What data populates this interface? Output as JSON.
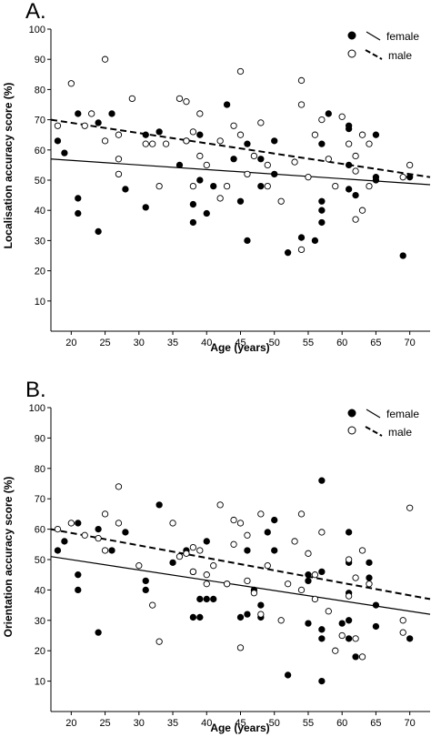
{
  "chart_data": [
    {
      "panel_label": "A.",
      "type": "scatter",
      "xlabel": "Age (years)",
      "ylabel": "Localisation accuracy score (%)",
      "xlim": [
        17,
        73
      ],
      "ylim": [
        0,
        100
      ],
      "x_ticks": [
        20,
        25,
        30,
        35,
        40,
        45,
        50,
        55,
        60,
        65,
        70
      ],
      "y_ticks": [
        10,
        20,
        30,
        40,
        50,
        60,
        70,
        80,
        90,
        100
      ],
      "legend_position": "top-right",
      "series": [
        {
          "name": "female",
          "marker": "filled",
          "line_style": "solid",
          "fit_line": [
            [
              17,
              57
            ],
            [
              73,
              48.5
            ]
          ],
          "points": [
            [
              18,
              63
            ],
            [
              19,
              59
            ],
            [
              21,
              72
            ],
            [
              21,
              44
            ],
            [
              21,
              39
            ],
            [
              24,
              69
            ],
            [
              24,
              33
            ],
            [
              26,
              72
            ],
            [
              28,
              47
            ],
            [
              31,
              65
            ],
            [
              31,
              41
            ],
            [
              33,
              66
            ],
            [
              36,
              55
            ],
            [
              37,
              63
            ],
            [
              38,
              36
            ],
            [
              38,
              42
            ],
            [
              39,
              65
            ],
            [
              39,
              50
            ],
            [
              40,
              39
            ],
            [
              41,
              48
            ],
            [
              43,
              75
            ],
            [
              44,
              57
            ],
            [
              45,
              43
            ],
            [
              46,
              62
            ],
            [
              46,
              30
            ],
            [
              48,
              48
            ],
            [
              48,
              57
            ],
            [
              50,
              63
            ],
            [
              50,
              52
            ],
            [
              52,
              26
            ],
            [
              54,
              31
            ],
            [
              56,
              30
            ],
            [
              57,
              62
            ],
            [
              57,
              43
            ],
            [
              57,
              40
            ],
            [
              57,
              36
            ],
            [
              58,
              72
            ],
            [
              61,
              68
            ],
            [
              61,
              67
            ],
            [
              61,
              55
            ],
            [
              61,
              47
            ],
            [
              62,
              45
            ],
            [
              65,
              65
            ],
            [
              65,
              51
            ],
            [
              65,
              50
            ],
            [
              69,
              25
            ],
            [
              70,
              51
            ]
          ]
        },
        {
          "name": "male",
          "marker": "open",
          "line_style": "dashed",
          "fit_line": [
            [
              17,
              70
            ],
            [
              73,
              51
            ]
          ],
          "points": [
            [
              18,
              68
            ],
            [
              20,
              82
            ],
            [
              22,
              68
            ],
            [
              23,
              72
            ],
            [
              25,
              90
            ],
            [
              25,
              63
            ],
            [
              27,
              65
            ],
            [
              27,
              52
            ],
            [
              27,
              57
            ],
            [
              29,
              77
            ],
            [
              31,
              62
            ],
            [
              32,
              62
            ],
            [
              33,
              48
            ],
            [
              34,
              62
            ],
            [
              36,
              77
            ],
            [
              37,
              76
            ],
            [
              37,
              63
            ],
            [
              38,
              66
            ],
            [
              38,
              48
            ],
            [
              39,
              58
            ],
            [
              39,
              72
            ],
            [
              40,
              55
            ],
            [
              42,
              44
            ],
            [
              42,
              63
            ],
            [
              43,
              48
            ],
            [
              44,
              68
            ],
            [
              45,
              86
            ],
            [
              45,
              65
            ],
            [
              46,
              52
            ],
            [
              47,
              58
            ],
            [
              48,
              69
            ],
            [
              49,
              55
            ],
            [
              49,
              48
            ],
            [
              51,
              43
            ],
            [
              53,
              56
            ],
            [
              54,
              83
            ],
            [
              54,
              75
            ],
            [
              54,
              27
            ],
            [
              55,
              51
            ],
            [
              56,
              65
            ],
            [
              57,
              70
            ],
            [
              58,
              57
            ],
            [
              59,
              48
            ],
            [
              60,
              71
            ],
            [
              61,
              62
            ],
            [
              62,
              58
            ],
            [
              62,
              53
            ],
            [
              62,
              37
            ],
            [
              63,
              65
            ],
            [
              63,
              40
            ],
            [
              64,
              62
            ],
            [
              64,
              48
            ],
            [
              69,
              51
            ],
            [
              70,
              55
            ]
          ]
        }
      ]
    },
    {
      "panel_label": "B.",
      "type": "scatter",
      "xlabel": "Age (years)",
      "ylabel": "Orientation accuracy score (%)",
      "xlim": [
        17,
        73
      ],
      "ylim": [
        0,
        100
      ],
      "x_ticks": [
        20,
        25,
        30,
        35,
        40,
        45,
        50,
        55,
        60,
        65,
        70
      ],
      "y_ticks": [
        10,
        20,
        30,
        40,
        50,
        60,
        70,
        80,
        90,
        100
      ],
      "legend_position": "top-right",
      "series": [
        {
          "name": "female",
          "marker": "filled",
          "line_style": "solid",
          "fit_line": [
            [
              17,
              51
            ],
            [
              73,
              32
            ]
          ],
          "points": [
            [
              18,
              53
            ],
            [
              19,
              56
            ],
            [
              21,
              62
            ],
            [
              21,
              45
            ],
            [
              21,
              40
            ],
            [
              24,
              60
            ],
            [
              24,
              26
            ],
            [
              26,
              53
            ],
            [
              28,
              59
            ],
            [
              31,
              43
            ],
            [
              31,
              40
            ],
            [
              33,
              68
            ],
            [
              35,
              49
            ],
            [
              37,
              53
            ],
            [
              38,
              46
            ],
            [
              38,
              31
            ],
            [
              39,
              37
            ],
            [
              39,
              31
            ],
            [
              40,
              56
            ],
            [
              40,
              37
            ],
            [
              41,
              37
            ],
            [
              43,
              42
            ],
            [
              45,
              31
            ],
            [
              46,
              32
            ],
            [
              46,
              53
            ],
            [
              47,
              40
            ],
            [
              48,
              35
            ],
            [
              48,
              31
            ],
            [
              49,
              59
            ],
            [
              50,
              63
            ],
            [
              50,
              53
            ],
            [
              52,
              12
            ],
            [
              55,
              43
            ],
            [
              55,
              29
            ],
            [
              55,
              45
            ],
            [
              57,
              76
            ],
            [
              57,
              46
            ],
            [
              57,
              27
            ],
            [
              57,
              24
            ],
            [
              57,
              10
            ],
            [
              60,
              29
            ],
            [
              61,
              59
            ],
            [
              61,
              49
            ],
            [
              61,
              39
            ],
            [
              61,
              30
            ],
            [
              61,
              24
            ],
            [
              62,
              18
            ],
            [
              64,
              44
            ],
            [
              64,
              49
            ],
            [
              65,
              35
            ],
            [
              65,
              28
            ],
            [
              70,
              24
            ]
          ]
        },
        {
          "name": "male",
          "marker": "open",
          "line_style": "dashed",
          "fit_line": [
            [
              17,
              60
            ],
            [
              73,
              37
            ]
          ],
          "points": [
            [
              18,
              60
            ],
            [
              20,
              62
            ],
            [
              22,
              58
            ],
            [
              24,
              57
            ],
            [
              25,
              65
            ],
            [
              25,
              53
            ],
            [
              27,
              74
            ],
            [
              27,
              62
            ],
            [
              30,
              48
            ],
            [
              32,
              35
            ],
            [
              33,
              23
            ],
            [
              35,
              62
            ],
            [
              36,
              51
            ],
            [
              37,
              52
            ],
            [
              38,
              46
            ],
            [
              38,
              54
            ],
            [
              39,
              53
            ],
            [
              40,
              42
            ],
            [
              40,
              45
            ],
            [
              41,
              48
            ],
            [
              42,
              68
            ],
            [
              43,
              42
            ],
            [
              44,
              63
            ],
            [
              44,
              55
            ],
            [
              45,
              62
            ],
            [
              45,
              21
            ],
            [
              46,
              58
            ],
            [
              46,
              43
            ],
            [
              47,
              39
            ],
            [
              48,
              65
            ],
            [
              48,
              32
            ],
            [
              49,
              48
            ],
            [
              51,
              30
            ],
            [
              52,
              42
            ],
            [
              53,
              56
            ],
            [
              54,
              65
            ],
            [
              55,
              52
            ],
            [
              54,
              40
            ],
            [
              56,
              37
            ],
            [
              56,
              45
            ],
            [
              57,
              59
            ],
            [
              58,
              33
            ],
            [
              59,
              20
            ],
            [
              60,
              25
            ],
            [
              61,
              50
            ],
            [
              61,
              38
            ],
            [
              62,
              24
            ],
            [
              62,
              44
            ],
            [
              63,
              53
            ],
            [
              63,
              18
            ],
            [
              64,
              42
            ],
            [
              69,
              30
            ],
            [
              69,
              26
            ],
            [
              70,
              67
            ]
          ]
        }
      ]
    }
  ],
  "legend": {
    "female_label": "female",
    "male_label": "male"
  }
}
